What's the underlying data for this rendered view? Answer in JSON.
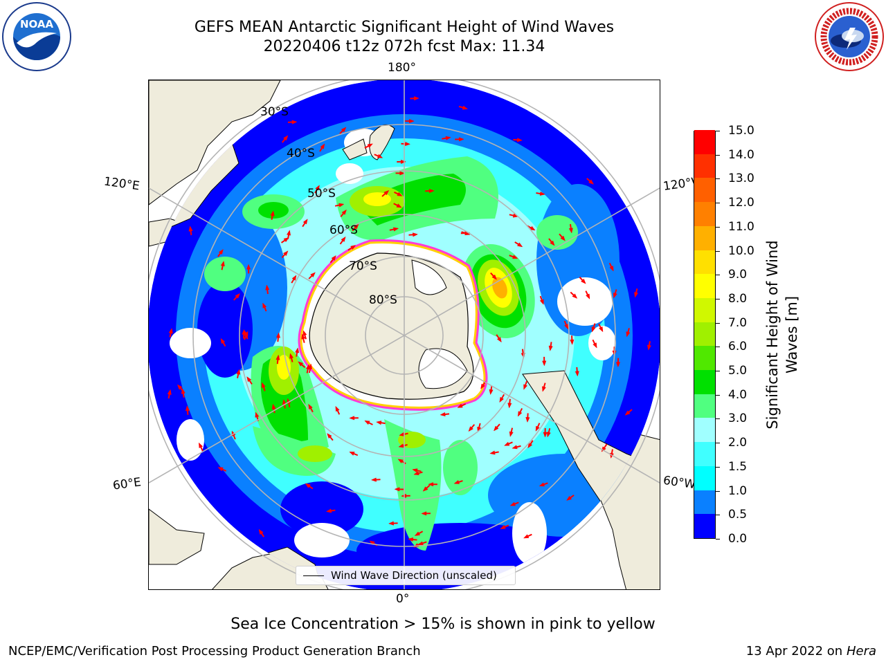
{
  "header": {
    "title_line1": "GEFS MEAN Antarctic Significant Height of Wind Waves",
    "title_line2": "20220406 t12z 072h fcst   Max: 11.34"
  },
  "logos": {
    "noaa": {
      "text": "NOAA",
      "ring_text": "NATIONAL OCEANIC AND ATMOSPHERIC ADMINISTRATION"
    },
    "nws": {
      "ring_text": "NATIONAL WEATHER SERVICE"
    }
  },
  "map": {
    "projection": "south-polar-stereographic",
    "longitude_labels": {
      "top": "180°",
      "bottom": "0°",
      "upper_left": "120°E",
      "upper_right": "120°W",
      "lower_left": "60°E",
      "lower_right": "60°W"
    },
    "latitude_labels": [
      "30°S",
      "40°S",
      "50°S",
      "60°S",
      "70°S",
      "80°S"
    ],
    "land_color": "#efecdc",
    "ocean_outside_color": "#ffffff",
    "legend": {
      "label": "Wind Wave Direction (unscaled)"
    },
    "max_value": "11.34"
  },
  "colorbar": {
    "title_line1": "Significant Height of Wind",
    "title_line2": "Waves [m]",
    "ticks": [
      "0.0",
      "0.5",
      "1.0",
      "1.5",
      "2.0",
      "3.0",
      "4.0",
      "5.0",
      "6.0",
      "7.0",
      "8.0",
      "9.0",
      "10.0",
      "11.0",
      "12.0",
      "13.0",
      "14.0",
      "15.0"
    ],
    "colors": [
      "#0000ff",
      "#0a80ff",
      "#00ffff",
      "#40ffff",
      "#a0ffff",
      "#50ff80",
      "#00e000",
      "#50e800",
      "#a0f000",
      "#d0f800",
      "#ffff00",
      "#ffe000",
      "#ffb000",
      "#ff8000",
      "#ff6000",
      "#ff3000",
      "#ff0000"
    ]
  },
  "caption": "Sea Ice Concentration > 15% is shown in pink to yellow",
  "footer": {
    "left": "NCEP/EMC/Verification Post Processing Product Generation Branch",
    "right_date": "13 Apr 2022 on",
    "right_machine": "Hera"
  }
}
